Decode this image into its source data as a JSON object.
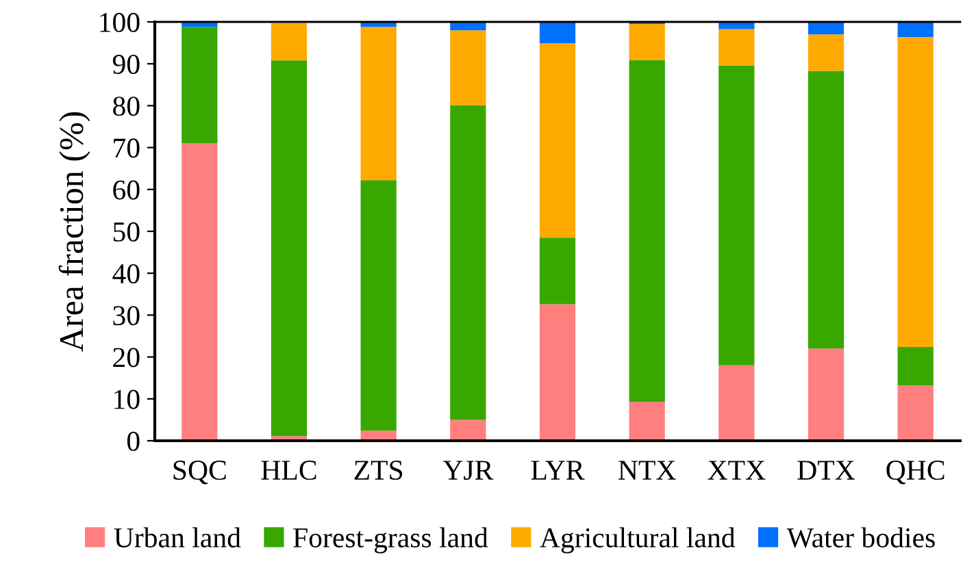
{
  "chart_data": {
    "type": "bar",
    "stacked": true,
    "ylabel": "Area fraction (%)",
    "categories": [
      "SQC",
      "HLC",
      "ZTS",
      "YJR",
      "LYR",
      "NTX",
      "XTX",
      "DTX",
      "QHC"
    ],
    "series": [
      {
        "name": "Urban land",
        "color": "#ff7f7f",
        "values": [
          71.0,
          1.1,
          2.4,
          5.0,
          32.6,
          9.3,
          18.0,
          22.0,
          13.2
        ]
      },
      {
        "name": "Forest-grass land",
        "color": "#38a800",
        "values": [
          27.8,
          89.7,
          59.8,
          75.1,
          15.9,
          81.6,
          71.6,
          66.3,
          9.2
        ]
      },
      {
        "name": "Agricultural land",
        "color": "#ffaa00",
        "values": [
          0,
          8.9,
          36.6,
          17.9,
          46.4,
          8.6,
          8.7,
          8.7,
          74.0
        ]
      },
      {
        "name": "Water bodies",
        "color": "#0070ff",
        "values": [
          1.2,
          null,
          1.2,
          2.0,
          5.1,
          0.5,
          1.7,
          3.0,
          3.6
        ]
      }
    ],
    "ylim": [
      0,
      100
    ],
    "yticks": [
      0,
      10,
      20,
      30,
      40,
      50,
      60,
      70,
      80,
      90,
      100
    ],
    "grid": false,
    "legend": "bottom"
  }
}
